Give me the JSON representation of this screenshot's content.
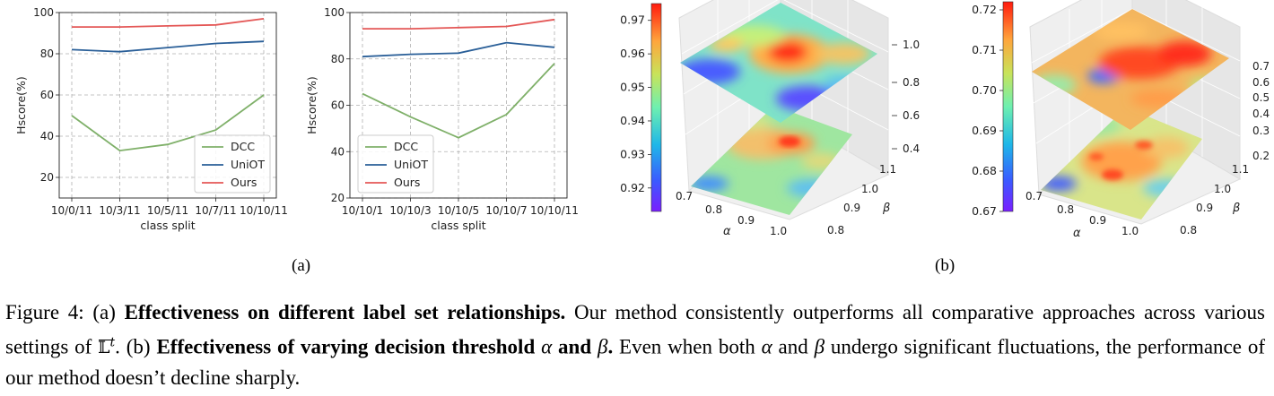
{
  "panel_a": {
    "label": "(a)",
    "legend": [
      "DCC",
      "UniOT",
      "Ours"
    ]
  },
  "panel_b": {
    "label": "(b)"
  },
  "colors": {
    "dcc": "#7fb069",
    "uniot": "#2a5f98",
    "ours": "#e45756",
    "grid": "#b0b0b0",
    "pane": "#ebebeb"
  },
  "chart_data": [
    {
      "type": "line",
      "xlabel": "class split",
      "ylabel": "Hscore(%)",
      "categories": [
        "10/0/11",
        "10/3/11",
        "10/5/11",
        "10/7/11",
        "10/10/11"
      ],
      "ylim": [
        10,
        100
      ],
      "yticks": [
        20,
        40,
        60,
        80,
        100
      ],
      "grid": true,
      "legend_position": "lower-right",
      "series": [
        {
          "name": "DCC",
          "values": [
            50,
            33,
            36,
            43,
            60
          ]
        },
        {
          "name": "UniOT",
          "values": [
            82,
            81,
            83,
            85,
            86
          ]
        },
        {
          "name": "Ours",
          "values": [
            93,
            93,
            93.5,
            94,
            97
          ]
        }
      ]
    },
    {
      "type": "line",
      "xlabel": "class split",
      "ylabel": "Hscore(%)",
      "categories": [
        "10/10/1",
        "10/10/3",
        "10/10/5",
        "10/10/7",
        "10/10/11"
      ],
      "ylim": [
        20,
        100
      ],
      "yticks": [
        20,
        40,
        60,
        80,
        100
      ],
      "grid": true,
      "legend_position": "lower-left",
      "series": [
        {
          "name": "DCC",
          "values": [
            65,
            55,
            46,
            56,
            78
          ]
        },
        {
          "name": "UniOT",
          "values": [
            81,
            82,
            82.5,
            87,
            85
          ]
        },
        {
          "name": "Ours",
          "values": [
            93,
            93,
            93.5,
            94,
            97
          ]
        }
      ]
    },
    {
      "type": "surface3d",
      "xlabel": "α",
      "ylabel": "β",
      "x_ticks": [
        "0.7",
        "0.8",
        "0.9",
        "1.0"
      ],
      "y_ticks": [
        "0.8",
        "0.9",
        "1.0",
        "1.1"
      ],
      "z_ticks": [
        "0.4",
        "0.6",
        "0.8",
        "1.0"
      ],
      "colorbar_ticks": [
        "0.92",
        "0.93",
        "0.94",
        "0.95",
        "0.96",
        "0.97"
      ],
      "colorbar_range": [
        0.913,
        0.975
      ],
      "colormap": "rainbow",
      "peak_value": 0.97
    },
    {
      "type": "surface3d",
      "xlabel": "α",
      "ylabel": "β",
      "x_ticks": [
        "0.7",
        "0.8",
        "0.9",
        "1.0"
      ],
      "y_ticks": [
        "0.8",
        "0.9",
        "1.0",
        "1.1"
      ],
      "z_ticks": [
        "0.2",
        "0.3",
        "0.4",
        "0.5",
        "0.6",
        "0.7"
      ],
      "colorbar_ticks": [
        "0.67",
        "0.68",
        "0.69",
        "0.70",
        "0.71",
        "0.72"
      ],
      "colorbar_range": [
        0.67,
        0.722
      ],
      "colormap": "rainbow",
      "peak_value": 0.72
    }
  ],
  "caption": {
    "prefix": "Figure 4: (a) ",
    "bold1": "Effectiveness on different label set relationships.",
    "text1": " Our method consistently outperforms all comparative approaches across various settings of ",
    "set_symbol": "𝕃",
    "set_superscript": "t",
    "text2": ". (b) ",
    "bold2a": "Effectiveness of varying decision threshold ",
    "alpha": "α",
    "bold2b": " and ",
    "beta": "β",
    "bold2c": ".",
    "text3": " Even when both ",
    "text4": " and ",
    "text5": " undergo significant fluctuations, the performance of our method doesn’t decline sharply."
  }
}
